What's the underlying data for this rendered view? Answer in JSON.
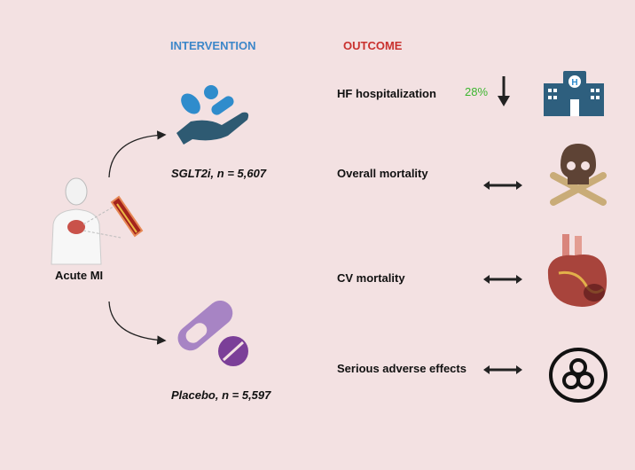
{
  "headers": {
    "intervention": "INTERVENTION",
    "outcome": "OUTCOME"
  },
  "patient": {
    "label": "Acute MI"
  },
  "arms": [
    {
      "label": "SGLT2i, n = 5,607"
    },
    {
      "label": "Placebo, n = 5,597"
    }
  ],
  "outcomes": [
    {
      "label": "HF hospitalization",
      "effect": "28%",
      "direction": "decrease",
      "icon": "hospital-icon"
    },
    {
      "label": "Overall mortality",
      "direction": "neutral",
      "icon": "skull-crossbones-icon"
    },
    {
      "label": "CV mortality",
      "direction": "neutral",
      "icon": "heart-icon"
    },
    {
      "label": "Serious adverse effects",
      "direction": "neutral",
      "icon": "biohazard-icon"
    }
  ],
  "colors": {
    "intervention": "#3d87c9",
    "outcome": "#c9312e",
    "effect": "#3cb52f",
    "background": "#f3e1e2"
  }
}
